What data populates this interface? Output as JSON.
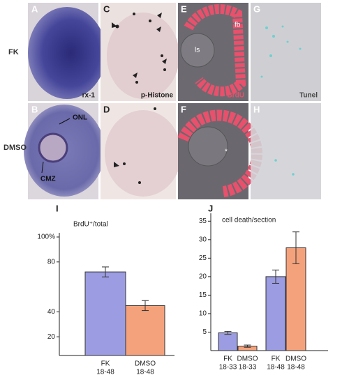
{
  "row_labels": [
    "FK",
    "DMSO"
  ],
  "panels": [
    {
      "letter": "A",
      "label": "rx-1"
    },
    {
      "letter": "C",
      "label": "p-Histone"
    },
    {
      "letter": "E",
      "label": "BrdU",
      "annotations": [
        "fb",
        "ls"
      ]
    },
    {
      "letter": "G",
      "label": "Tunel"
    },
    {
      "letter": "B",
      "annotations": [
        "ONL",
        "CMZ"
      ]
    },
    {
      "letter": "D"
    },
    {
      "letter": "F",
      "annotations": [
        "*"
      ]
    },
    {
      "letter": "H"
    }
  ],
  "chart_data": [
    {
      "type": "bar",
      "panel": "I",
      "title": "BrdU⁺/total",
      "categories": [
        "FK",
        "DMSO"
      ],
      "periods": [
        "18-48",
        "18-48"
      ],
      "values": [
        72,
        45
      ],
      "errors": [
        4,
        4
      ],
      "colors": [
        "#9c9ce2",
        "#f4a27c"
      ],
      "ylim": [
        5,
        100
      ],
      "yticks": [
        {
          "value": 100,
          "label": "100%"
        },
        80,
        40,
        20
      ]
    },
    {
      "type": "bar",
      "panel": "J",
      "title": "cell death/section",
      "categories": [
        "FK",
        "DMSO",
        "FK",
        "DMSO"
      ],
      "periods": [
        "18-33",
        "18-33",
        "18-48",
        "18-48"
      ],
      "values": [
        4.8,
        1.2,
        20,
        27.8
      ],
      "errors": [
        0.4,
        0.3,
        1.8,
        4.3
      ],
      "colors": [
        "#9c9ce2",
        "#f4a27c",
        "#9c9ce2",
        "#f4a27c"
      ],
      "ylim": [
        0,
        36
      ],
      "yticks": [
        5,
        10,
        15,
        20,
        25,
        30,
        35
      ]
    }
  ]
}
